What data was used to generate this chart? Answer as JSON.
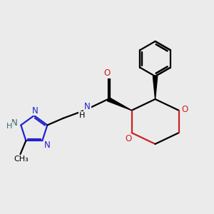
{
  "background_color": "#ebebeb",
  "bond_color": "#000000",
  "nitrogen_color": "#2222cc",
  "oxygen_color": "#cc2222",
  "nh_triazole_color": "#336666",
  "line_width": 1.6,
  "figsize": [
    3.0,
    3.0
  ],
  "dpi": 100,
  "xlim": [
    0.5,
    10.0
  ],
  "ylim": [
    1.5,
    9.5
  ]
}
